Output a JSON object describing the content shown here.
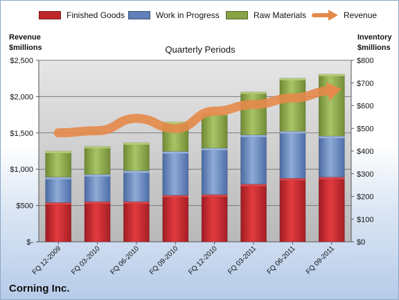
{
  "chart_data": {
    "type": "bar",
    "stacked": true,
    "subtitle": "Quarterly Periods",
    "company": "Corning Inc.",
    "left_axis_title": [
      "Revenue",
      "$millions"
    ],
    "right_axis_title": [
      "Inventory",
      "$millions"
    ],
    "categories": [
      "FQ 12-2009",
      "FQ 03-2010",
      "FQ 06-2010",
      "FQ 09-2010",
      "FQ 12-2010",
      "FQ 03-2011",
      "FQ 06-2011",
      "FQ 09-2011"
    ],
    "series": [
      {
        "name": "Finished Goods",
        "axis": "right",
        "color": "#c0272d",
        "values": [
          173,
          177,
          177,
          205,
          208,
          254,
          280,
          285
        ]
      },
      {
        "name": "Work in Progress",
        "axis": "right",
        "color": "#5f80b8",
        "values": [
          112,
          120,
          136,
          193,
          205,
          217,
          207,
          181
        ]
      },
      {
        "name": "Raw Materials",
        "axis": "right",
        "color": "#86a243",
        "values": [
          115,
          124,
          124,
          130,
          154,
          190,
          234,
          273
        ]
      }
    ],
    "line": {
      "name": "Revenue",
      "axis": "left",
      "color": "#e5894a",
      "values": [
        1500,
        1530,
        1700,
        1560,
        1800,
        1890,
        1980,
        2080
      ]
    },
    "left_axis": {
      "ticks": [
        "$-",
        "$500",
        "$1,000",
        "$1,500",
        "$2,000",
        "$2,500"
      ],
      "min": 0,
      "max": 2500
    },
    "right_axis": {
      "ticks": [
        "$0",
        "$100",
        "$200",
        "$300",
        "$400",
        "$500",
        "$600",
        "$700",
        "$800"
      ],
      "min": 0,
      "max": 800
    },
    "grid": true,
    "legend_position": "top"
  }
}
